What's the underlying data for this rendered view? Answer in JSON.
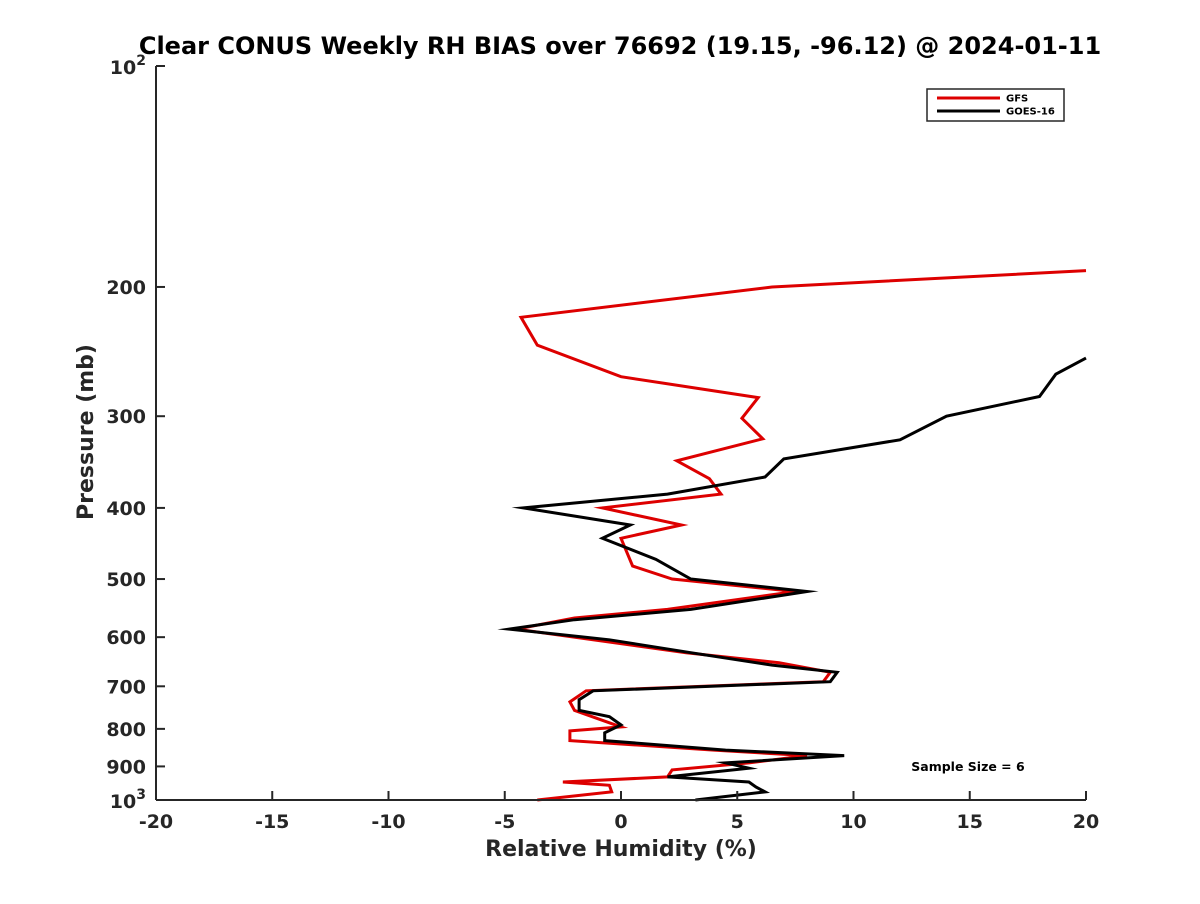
{
  "chart_data": {
    "type": "line",
    "title": "Clear CONUS Weekly RH BIAS over 76692 (19.15, -96.12) @ 2024-01-11",
    "xlabel": "Relative Humidity (%)",
    "ylabel": "Pressure (mb)",
    "xlim": [
      -20,
      20
    ],
    "ylim": [
      100,
      1000
    ],
    "yscale": "log",
    "y_reversed": true,
    "x_ticks": [
      -20,
      -15,
      -10,
      -5,
      0,
      5,
      10,
      15,
      20
    ],
    "x_tick_labels": [
      "-20",
      "-15",
      "-10",
      "-5",
      "0",
      "5",
      "10",
      "15",
      "20"
    ],
    "y_ticks": [
      200,
      300,
      400,
      500,
      600,
      700,
      800,
      900
    ],
    "y_tick_labels": [
      "200",
      "300",
      "400",
      "500",
      "600",
      "700",
      "800",
      "900"
    ],
    "y_end_labels": [
      {
        "value": 100,
        "base": "10",
        "exp": "2"
      },
      {
        "value": 1000,
        "base": "10",
        "exp": "3"
      }
    ],
    "legend_position": "top-right",
    "annotation": "Sample Size = 6",
    "series": [
      {
        "name": "GFS",
        "color": "#dd0000",
        "points": [
          {
            "x": 20,
            "p": 190
          },
          {
            "x": 6.5,
            "p": 200
          },
          {
            "x": -4.3,
            "p": 220
          },
          {
            "x": -3.6,
            "p": 240
          },
          {
            "x": 0,
            "p": 265
          },
          {
            "x": 5.9,
            "p": 283
          },
          {
            "x": 5.2,
            "p": 302
          },
          {
            "x": 6.1,
            "p": 322
          },
          {
            "x": 2.4,
            "p": 345
          },
          {
            "x": 3.8,
            "p": 365
          },
          {
            "x": 4.3,
            "p": 383
          },
          {
            "x": -0.8,
            "p": 400
          },
          {
            "x": 2.6,
            "p": 422
          },
          {
            "x": 0,
            "p": 440
          },
          {
            "x": 0.5,
            "p": 480
          },
          {
            "x": 2.2,
            "p": 500
          },
          {
            "x": 7.5,
            "p": 520
          },
          {
            "x": 2.0,
            "p": 550
          },
          {
            "x": -2.0,
            "p": 565
          },
          {
            "x": -4.5,
            "p": 585
          },
          {
            "x": -1.2,
            "p": 605
          },
          {
            "x": 2.8,
            "p": 630
          },
          {
            "x": 6.8,
            "p": 650
          },
          {
            "x": 9.0,
            "p": 670
          },
          {
            "x": 8.7,
            "p": 690
          },
          {
            "x": -1.5,
            "p": 710
          },
          {
            "x": -2.2,
            "p": 735
          },
          {
            "x": -2.0,
            "p": 755
          },
          {
            "x": -1.0,
            "p": 775
          },
          {
            "x": 0,
            "p": 795
          },
          {
            "x": -2.2,
            "p": 805
          },
          {
            "x": -2.2,
            "p": 830
          },
          {
            "x": 4.0,
            "p": 855
          },
          {
            "x": 8.0,
            "p": 870
          },
          {
            "x": 5.5,
            "p": 890
          },
          {
            "x": 2.2,
            "p": 910
          },
          {
            "x": 2.0,
            "p": 930
          },
          {
            "x": -2.5,
            "p": 945
          },
          {
            "x": -0.5,
            "p": 955
          },
          {
            "x": -0.4,
            "p": 975
          },
          {
            "x": -3.6,
            "p": 1000
          }
        ]
      },
      {
        "name": "GOES-16",
        "color": "#000000",
        "points": [
          {
            "x": 20,
            "p": 250
          },
          {
            "x": 18.7,
            "p": 263
          },
          {
            "x": 18.0,
            "p": 282
          },
          {
            "x": 14.0,
            "p": 300
          },
          {
            "x": 12.0,
            "p": 323
          },
          {
            "x": 7.0,
            "p": 343
          },
          {
            "x": 6.2,
            "p": 363
          },
          {
            "x": 2.0,
            "p": 383
          },
          {
            "x": -4.2,
            "p": 400
          },
          {
            "x": 0.4,
            "p": 422
          },
          {
            "x": -0.8,
            "p": 440
          },
          {
            "x": 1.5,
            "p": 470
          },
          {
            "x": 3.0,
            "p": 500
          },
          {
            "x": 8.0,
            "p": 520
          },
          {
            "x": 3.0,
            "p": 550
          },
          {
            "x": -2.0,
            "p": 568
          },
          {
            "x": -4.8,
            "p": 585
          },
          {
            "x": -0.5,
            "p": 605
          },
          {
            "x": 3.0,
            "p": 630
          },
          {
            "x": 6.5,
            "p": 655
          },
          {
            "x": 9.3,
            "p": 670
          },
          {
            "x": 9.0,
            "p": 690
          },
          {
            "x": -1.2,
            "p": 710
          },
          {
            "x": -1.8,
            "p": 730
          },
          {
            "x": -1.8,
            "p": 755
          },
          {
            "x": -0.5,
            "p": 770
          },
          {
            "x": 0,
            "p": 790
          },
          {
            "x": -0.7,
            "p": 810
          },
          {
            "x": -0.7,
            "p": 830
          },
          {
            "x": 4.5,
            "p": 855
          },
          {
            "x": 9.6,
            "p": 870
          },
          {
            "x": 4.5,
            "p": 890
          },
          {
            "x": 5.5,
            "p": 905
          },
          {
            "x": 2.0,
            "p": 930
          },
          {
            "x": 5.5,
            "p": 945
          },
          {
            "x": 5.8,
            "p": 960
          },
          {
            "x": 6.2,
            "p": 975
          },
          {
            "x": 3.2,
            "p": 1000
          }
        ]
      }
    ]
  }
}
